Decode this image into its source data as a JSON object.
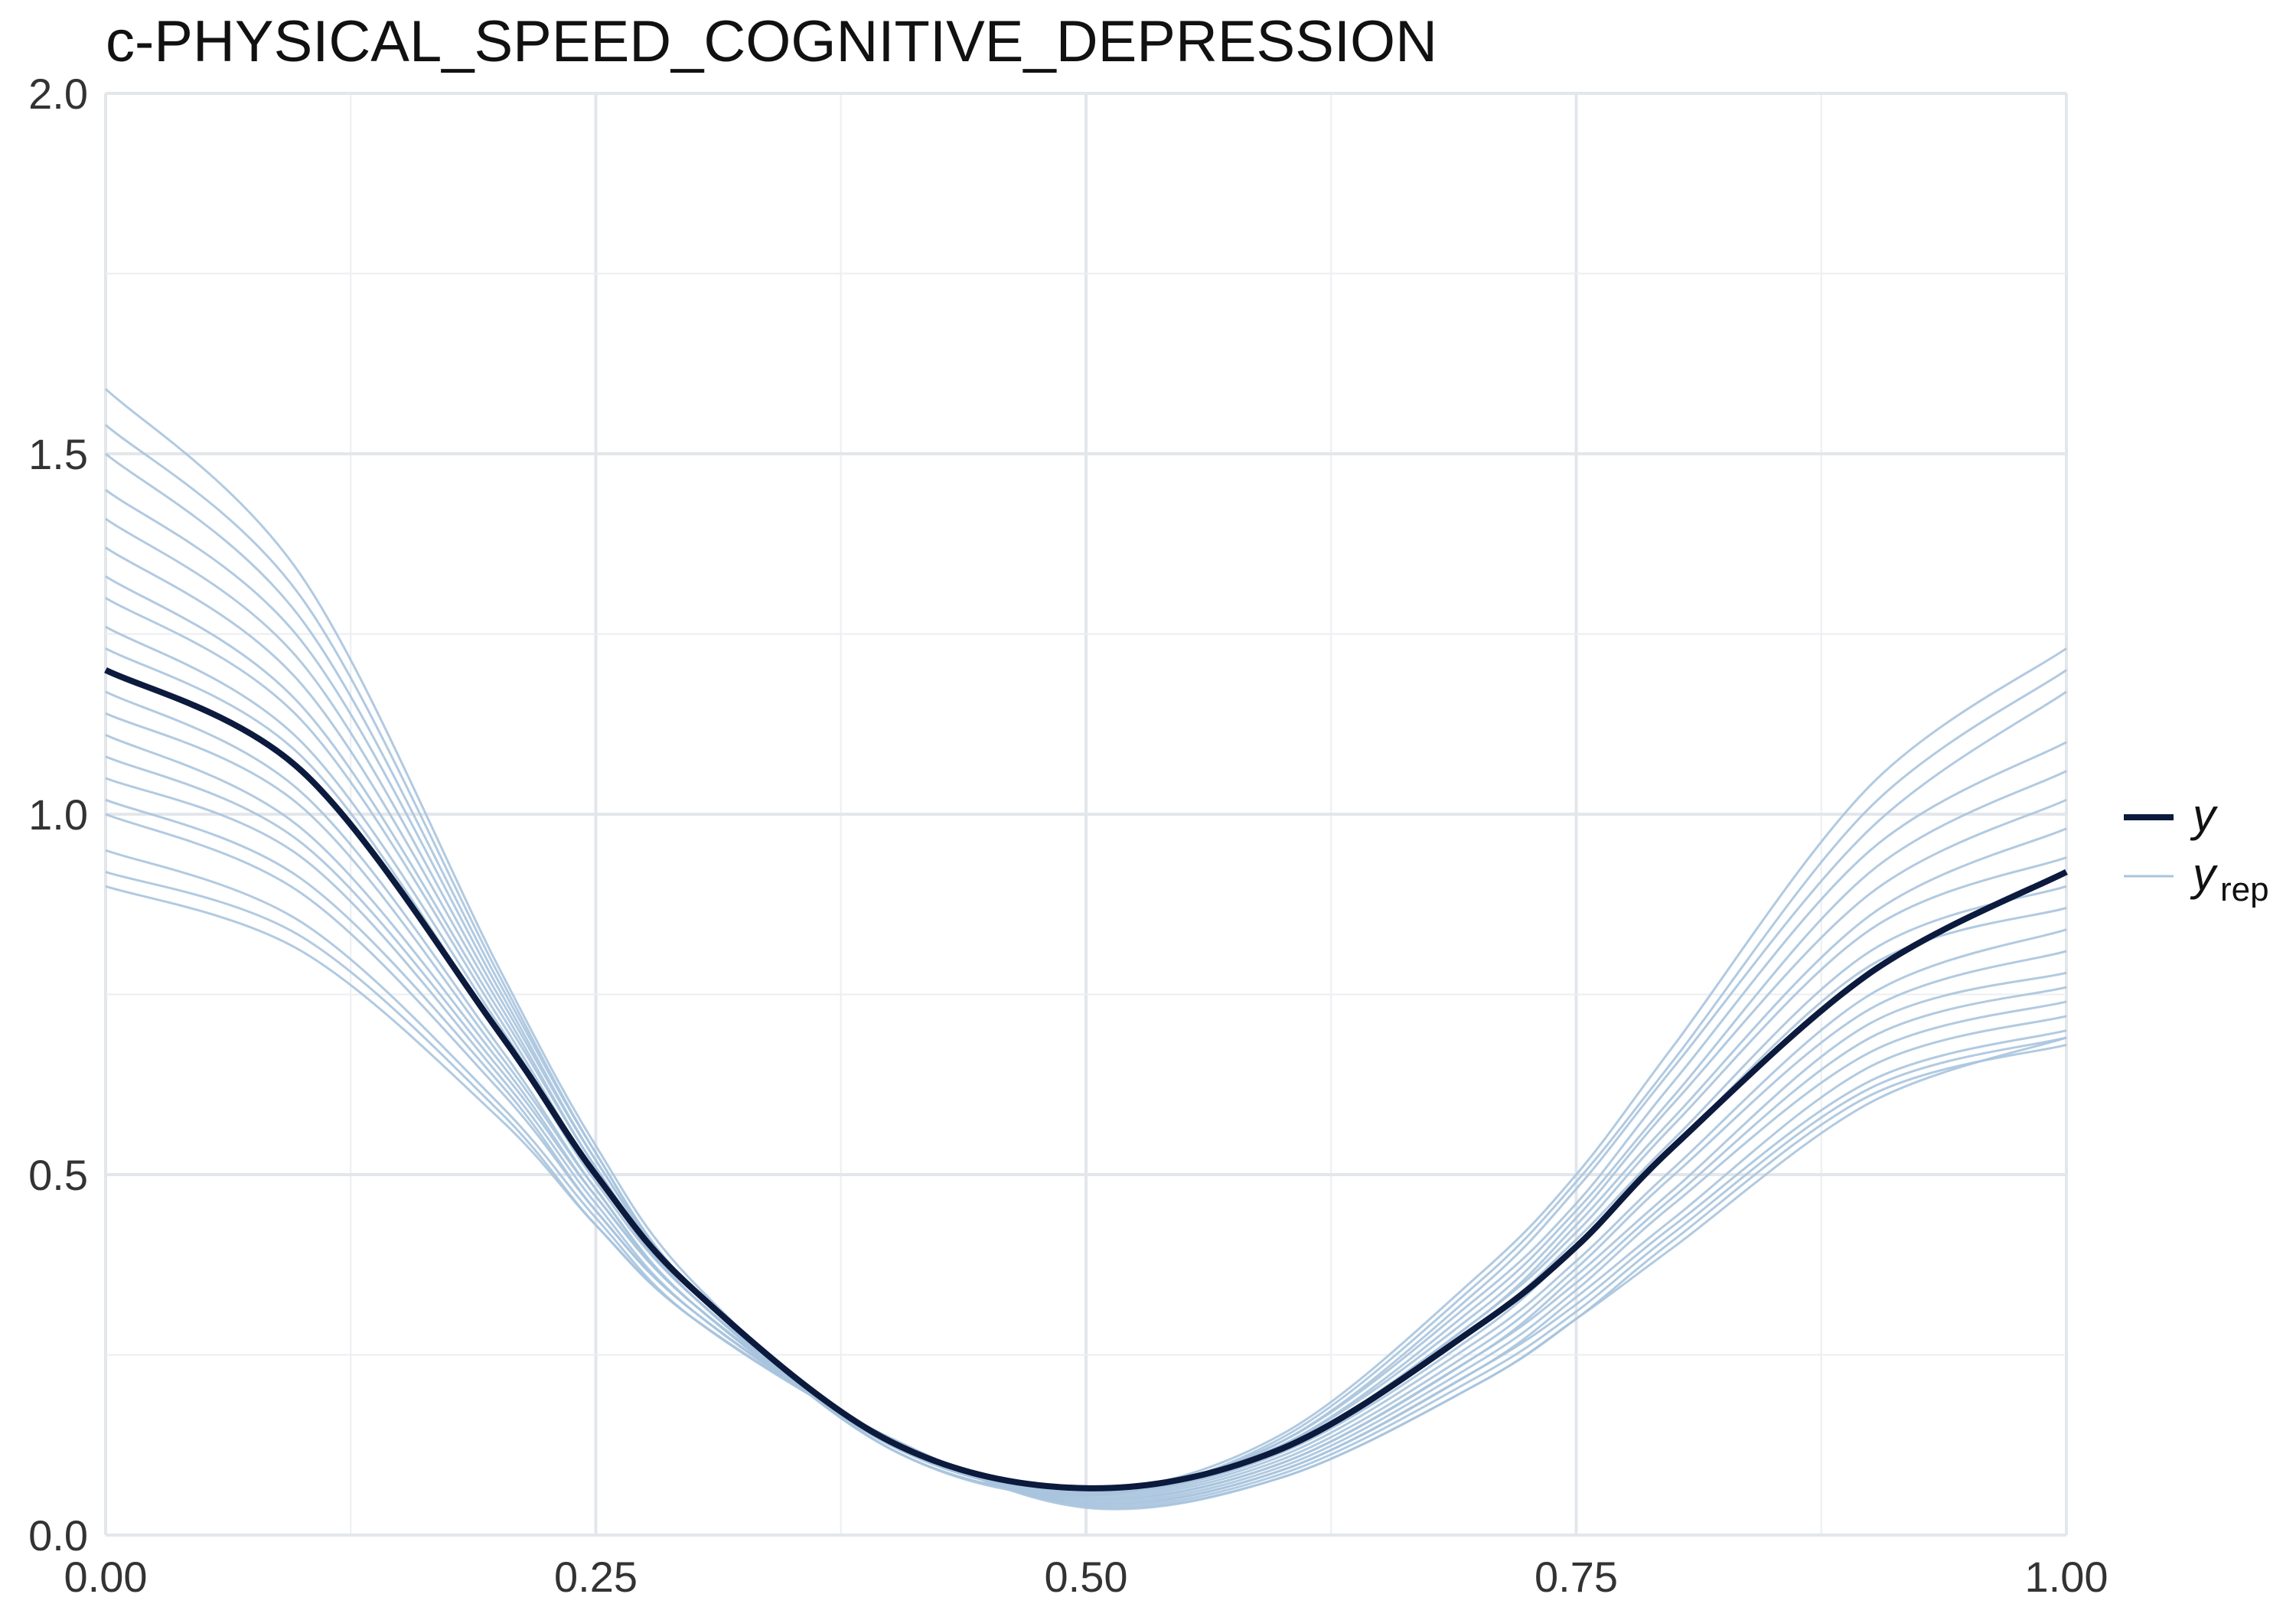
{
  "chart_data": {
    "type": "line",
    "title": "c-PHYSICAL_SPEED_COGNITIVE_DEPRESSION",
    "xlabel": "",
    "ylabel": "",
    "xlim": [
      0,
      1
    ],
    "ylim": [
      0,
      2
    ],
    "x_ticks": [
      "0.00",
      "0.25",
      "0.50",
      "0.75",
      "1.00"
    ],
    "y_ticks": [
      "0.0",
      "0.5",
      "1.0",
      "1.5",
      "2.0"
    ],
    "grid": true,
    "legend_position": "right",
    "legend": [
      {
        "label": "y",
        "subscript": ""
      },
      {
        "label": "y",
        "subscript": "rep"
      }
    ],
    "colors": {
      "y": "#0b1a3d",
      "y_rep": "#a9c4de"
    },
    "x": [
      0.0,
      0.1,
      0.2,
      0.25,
      0.3,
      0.4,
      0.5,
      0.6,
      0.7,
      0.75,
      0.8,
      0.9,
      1.0
    ],
    "series": [
      {
        "role": "y",
        "values": [
          1.2,
          1.06,
          0.7,
          0.5,
          0.34,
          0.13,
          0.065,
          0.12,
          0.29,
          0.4,
          0.54,
          0.78,
          0.92
        ]
      },
      {
        "role": "y_rep",
        "values": [
          1.59,
          1.33,
          0.79,
          0.54,
          0.35,
          0.12,
          0.06,
          0.14,
          0.36,
          0.5,
          0.68,
          1.04,
          1.23
        ]
      },
      {
        "role": "y_rep",
        "values": [
          1.54,
          1.3,
          0.78,
          0.53,
          0.34,
          0.12,
          0.055,
          0.135,
          0.35,
          0.49,
          0.66,
          1.01,
          1.2
        ]
      },
      {
        "role": "y_rep",
        "values": [
          1.5,
          1.27,
          0.77,
          0.53,
          0.34,
          0.12,
          0.058,
          0.13,
          0.34,
          0.48,
          0.65,
          0.98,
          1.17
        ]
      },
      {
        "role": "y_rep",
        "values": [
          1.45,
          1.24,
          0.76,
          0.52,
          0.34,
          0.125,
          0.06,
          0.13,
          0.33,
          0.46,
          0.63,
          0.95,
          1.1
        ]
      },
      {
        "role": "y_rep",
        "values": [
          1.41,
          1.21,
          0.75,
          0.52,
          0.34,
          0.125,
          0.062,
          0.125,
          0.32,
          0.45,
          0.61,
          0.92,
          1.06
        ]
      },
      {
        "role": "y_rep",
        "values": [
          1.37,
          1.18,
          0.74,
          0.51,
          0.34,
          0.128,
          0.063,
          0.125,
          0.31,
          0.44,
          0.6,
          0.89,
          1.02
        ]
      },
      {
        "role": "y_rep",
        "values": [
          1.33,
          1.15,
          0.73,
          0.51,
          0.33,
          0.128,
          0.064,
          0.12,
          0.3,
          0.43,
          0.58,
          0.86,
          0.98
        ]
      },
      {
        "role": "y_rep",
        "values": [
          1.3,
          1.13,
          0.72,
          0.5,
          0.33,
          0.13,
          0.065,
          0.12,
          0.3,
          0.42,
          0.57,
          0.84,
          0.94
        ]
      },
      {
        "role": "y_rep",
        "values": [
          1.26,
          1.1,
          0.71,
          0.5,
          0.33,
          0.13,
          0.06,
          0.115,
          0.29,
          0.41,
          0.55,
          0.81,
          0.9
        ]
      },
      {
        "role": "y_rep",
        "values": [
          1.23,
          1.08,
          0.7,
          0.49,
          0.33,
          0.13,
          0.058,
          0.115,
          0.28,
          0.4,
          0.54,
          0.79,
          0.87
        ]
      },
      {
        "role": "y_rep",
        "values": [
          1.17,
          1.03,
          0.68,
          0.48,
          0.32,
          0.13,
          0.056,
          0.11,
          0.27,
          0.38,
          0.51,
          0.75,
          0.84
        ]
      },
      {
        "role": "y_rep",
        "values": [
          1.14,
          1.01,
          0.67,
          0.48,
          0.32,
          0.13,
          0.054,
          0.105,
          0.26,
          0.37,
          0.5,
          0.73,
          0.81
        ]
      },
      {
        "role": "y_rep",
        "values": [
          1.11,
          0.98,
          0.66,
          0.47,
          0.32,
          0.132,
          0.052,
          0.1,
          0.25,
          0.36,
          0.48,
          0.71,
          0.78
        ]
      },
      {
        "role": "y_rep",
        "values": [
          1.08,
          0.96,
          0.65,
          0.47,
          0.32,
          0.132,
          0.05,
          0.1,
          0.25,
          0.35,
          0.47,
          0.69,
          0.76
        ]
      },
      {
        "role": "y_rep",
        "values": [
          1.05,
          0.94,
          0.64,
          0.46,
          0.31,
          0.133,
          0.048,
          0.095,
          0.24,
          0.34,
          0.46,
          0.67,
          0.74
        ]
      },
      {
        "role": "y_rep",
        "values": [
          1.02,
          0.91,
          0.63,
          0.45,
          0.31,
          0.133,
          0.046,
          0.09,
          0.23,
          0.33,
          0.44,
          0.65,
          0.72
        ]
      },
      {
        "role": "y_rep",
        "values": [
          1.0,
          0.89,
          0.62,
          0.45,
          0.31,
          0.134,
          0.044,
          0.09,
          0.23,
          0.32,
          0.43,
          0.63,
          0.7
        ]
      },
      {
        "role": "y_rep",
        "values": [
          0.95,
          0.85,
          0.6,
          0.44,
          0.3,
          0.135,
          0.042,
          0.085,
          0.22,
          0.31,
          0.42,
          0.62,
          0.69
        ]
      },
      {
        "role": "y_rep",
        "values": [
          0.92,
          0.83,
          0.59,
          0.43,
          0.3,
          0.135,
          0.04,
          0.08,
          0.21,
          0.3,
          0.41,
          0.61,
          0.68
        ]
      },
      {
        "role": "y_rep",
        "values": [
          0.9,
          0.81,
          0.58,
          0.43,
          0.3,
          0.135,
          0.038,
          0.08,
          0.21,
          0.3,
          0.4,
          0.6,
          0.69
        ]
      }
    ]
  }
}
